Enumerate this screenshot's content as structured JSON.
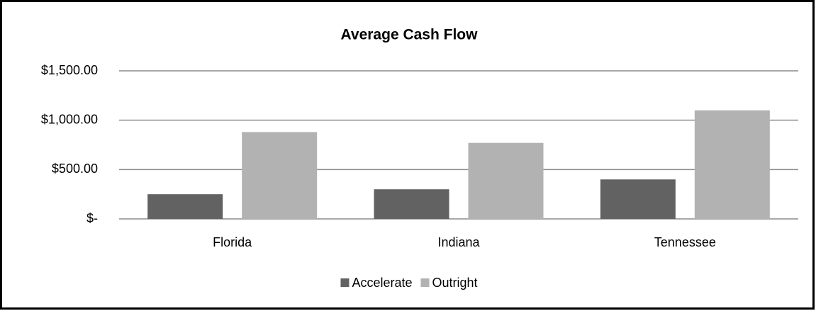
{
  "chart_data": {
    "type": "bar",
    "title": "Average Cash Flow",
    "categories": [
      "Florida",
      "Indiana",
      "Tennessee"
    ],
    "series": [
      {
        "name": "Accelerate",
        "color": "#626262",
        "values": [
          250,
          300,
          400
        ]
      },
      {
        "name": "Outright",
        "color": "#b2b2b2",
        "values": [
          880,
          770,
          1100
        ]
      }
    ],
    "ylim": [
      0,
      1500
    ],
    "yticks": [
      {
        "value": 0,
        "label": "$-"
      },
      {
        "value": 500,
        "label": "$500.00"
      },
      {
        "value": 1000,
        "label": "$1,000.00"
      },
      {
        "value": 1500,
        "label": "$1,500.00"
      }
    ],
    "grid": true,
    "legend": "bottom"
  }
}
